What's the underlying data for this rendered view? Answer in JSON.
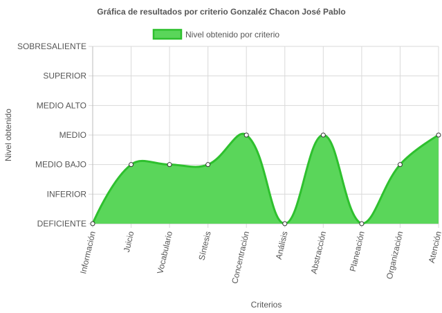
{
  "chart_data": {
    "type": "area",
    "title": "Gráfica de resultados por criterio Gonzaléz Chacon José Pablo",
    "xlabel": "Criterios",
    "ylabel": "Nivel obtenido",
    "categories": [
      "Información",
      "Juicio",
      "Vocabulario",
      "Síntesis",
      "Concentración",
      "Análisis",
      "Abstracción",
      "Planeación",
      "Organización",
      "Atención"
    ],
    "y_levels": [
      "DEFICIENTE",
      "INFERIOR",
      "MEDIO BAJO",
      "MEDIO",
      "MEDIO ALTO",
      "SUPERIOR",
      "SOBRESALIENTE"
    ],
    "ylim": [
      0,
      6
    ],
    "series": [
      {
        "name": "Nivel obtenido por criterio",
        "values": [
          0,
          2,
          2,
          2,
          3,
          0,
          3,
          0,
          2,
          3
        ]
      }
    ],
    "legend": "top-center",
    "grid": true,
    "colors": {
      "line": "#2ec02e",
      "fill": "#5ad65a",
      "point_fill": "#ffffff",
      "point_stroke": "#333333",
      "grid": "#d9d9d9"
    }
  }
}
